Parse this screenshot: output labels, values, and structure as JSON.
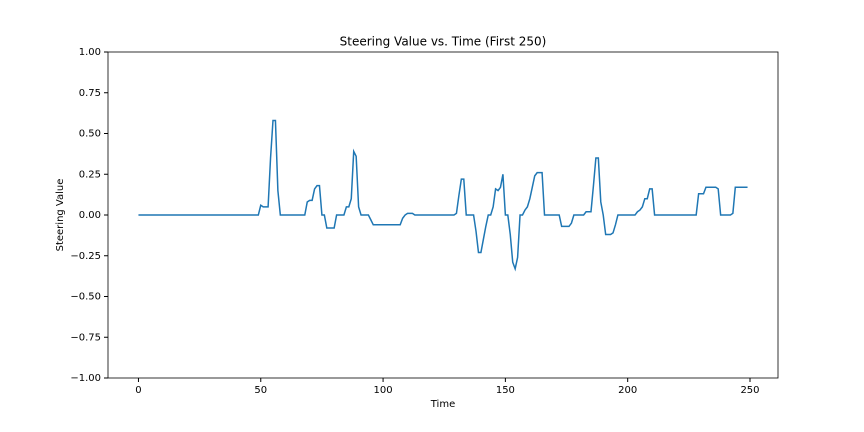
{
  "chart_data": {
    "type": "line",
    "title": "Steering Value vs. Time (First 250)",
    "xlabel": "Time",
    "ylabel": "Steering Value",
    "x": [
      0,
      1,
      2,
      3,
      4,
      5,
      6,
      7,
      8,
      9,
      10,
      11,
      12,
      13,
      14,
      15,
      16,
      17,
      18,
      19,
      20,
      21,
      22,
      23,
      24,
      25,
      26,
      27,
      28,
      29,
      30,
      31,
      32,
      33,
      34,
      35,
      36,
      37,
      38,
      39,
      40,
      41,
      42,
      43,
      44,
      45,
      46,
      47,
      48,
      49,
      50,
      51,
      52,
      53,
      54,
      55,
      56,
      57,
      58,
      59,
      60,
      61,
      62,
      63,
      64,
      65,
      66,
      67,
      68,
      69,
      70,
      71,
      72,
      73,
      74,
      75,
      76,
      77,
      78,
      79,
      80,
      81,
      82,
      83,
      84,
      85,
      86,
      87,
      88,
      89,
      90,
      91,
      92,
      93,
      94,
      95,
      96,
      97,
      98,
      99,
      100,
      101,
      102,
      103,
      104,
      105,
      106,
      107,
      108,
      109,
      110,
      111,
      112,
      113,
      114,
      115,
      116,
      117,
      118,
      119,
      120,
      121,
      122,
      123,
      124,
      125,
      126,
      127,
      128,
      129,
      130,
      131,
      132,
      133,
      134,
      135,
      136,
      137,
      138,
      139,
      140,
      141,
      142,
      143,
      144,
      145,
      146,
      147,
      148,
      149,
      150,
      151,
      152,
      153,
      154,
      155,
      156,
      157,
      158,
      159,
      160,
      161,
      162,
      163,
      164,
      165,
      166,
      167,
      168,
      169,
      170,
      171,
      172,
      173,
      174,
      175,
      176,
      177,
      178,
      179,
      180,
      181,
      182,
      183,
      184,
      185,
      186,
      187,
      188,
      189,
      190,
      191,
      192,
      193,
      194,
      195,
      196,
      197,
      198,
      199,
      200,
      201,
      202,
      203,
      204,
      205,
      206,
      207,
      208,
      209,
      210,
      211,
      212,
      213,
      214,
      215,
      216,
      217,
      218,
      219,
      220,
      221,
      222,
      223,
      224,
      225,
      226,
      227,
      228,
      229,
      230,
      231,
      232,
      233,
      234,
      235,
      236,
      237,
      238,
      239,
      240,
      241,
      242,
      243,
      244,
      245,
      246,
      247,
      248,
      249
    ],
    "series": [
      {
        "name": "Steering",
        "color": "#1f77b4",
        "values": [
          0,
          0,
          0,
          0,
          0,
          0,
          0,
          0,
          0,
          0,
          0,
          0,
          0,
          0,
          0,
          0,
          0,
          0,
          0,
          0,
          0,
          0,
          0,
          0,
          0,
          0,
          0,
          0,
          0,
          0,
          0,
          0,
          0,
          0,
          0,
          0,
          0,
          0,
          0,
          0,
          0,
          0,
          0,
          0,
          0,
          0,
          0,
          0,
          0,
          0,
          0.06,
          0.05,
          0.05,
          0.05,
          0.35,
          0.58,
          0.58,
          0.15,
          0,
          0,
          0,
          0,
          0,
          0,
          0,
          0,
          0,
          0,
          0,
          0.08,
          0.09,
          0.09,
          0.16,
          0.18,
          0.18,
          0,
          0,
          -0.08,
          -0.08,
          -0.08,
          -0.08,
          0,
          0,
          0,
          0,
          0.05,
          0.05,
          0.1,
          0.39,
          0.36,
          0.05,
          0,
          0,
          0,
          0,
          -0.03,
          -0.06,
          -0.06,
          -0.06,
          -0.06,
          -0.06,
          -0.06,
          -0.06,
          -0.06,
          -0.06,
          -0.06,
          -0.06,
          -0.06,
          -0.02,
          0,
          0.01,
          0.01,
          0.01,
          0,
          0,
          0,
          0,
          0,
          0,
          0,
          0,
          0,
          0,
          0,
          0,
          0,
          0,
          0,
          0,
          0,
          0.01,
          0.12,
          0.22,
          0.22,
          0,
          0,
          0,
          0,
          -0.1,
          -0.23,
          -0.23,
          -0.15,
          -0.07,
          0,
          0,
          0.05,
          0.16,
          0.15,
          0.17,
          0.25,
          0,
          0,
          -0.12,
          -0.29,
          -0.33,
          -0.26,
          0,
          0,
          0.03,
          0.05,
          0.1,
          0.17,
          0.24,
          0.26,
          0.26,
          0.26,
          0,
          0,
          0,
          0,
          0,
          0,
          0,
          -0.07,
          -0.07,
          -0.07,
          -0.07,
          -0.05,
          0,
          0,
          0,
          0,
          0,
          0.02,
          0.02,
          0.02,
          0.18,
          0.35,
          0.35,
          0.08,
          0,
          -0.12,
          -0.12,
          -0.12,
          -0.11,
          -0.06,
          0,
          0,
          0,
          0,
          0,
          0,
          0,
          0,
          0.02,
          0.03,
          0.05,
          0.1,
          0.1,
          0.16,
          0.16,
          0,
          0,
          0,
          0,
          0,
          0,
          0,
          0,
          0,
          0,
          0,
          0,
          0,
          0,
          0,
          0,
          0,
          0,
          0.13,
          0.13,
          0.13,
          0.17,
          0.17,
          0.17,
          0.17,
          0.17,
          0.16,
          0,
          0,
          0,
          0,
          0,
          0.01,
          0.17,
          0.17,
          0.17,
          0.17,
          0.17,
          0.17
        ]
      }
    ],
    "xlim": [
      -12.45,
      261.45
    ],
    "xticks": [
      0,
      50,
      100,
      150,
      200,
      250
    ],
    "ylim": [
      -1,
      1
    ],
    "yticks": [
      {
        "value": -1,
        "label": "−1.00"
      },
      {
        "value": -0.75,
        "label": "−0.75"
      },
      {
        "value": -0.5,
        "label": "−0.50"
      },
      {
        "value": -0.25,
        "label": "−0.25"
      },
      {
        "value": 0,
        "label": "0.00"
      },
      {
        "value": 0.25,
        "label": "0.25"
      },
      {
        "value": 0.5,
        "label": "0.50"
      },
      {
        "value": 0.75,
        "label": "0.75"
      },
      {
        "value": 1,
        "label": "1.00"
      }
    ],
    "grid": false
  }
}
